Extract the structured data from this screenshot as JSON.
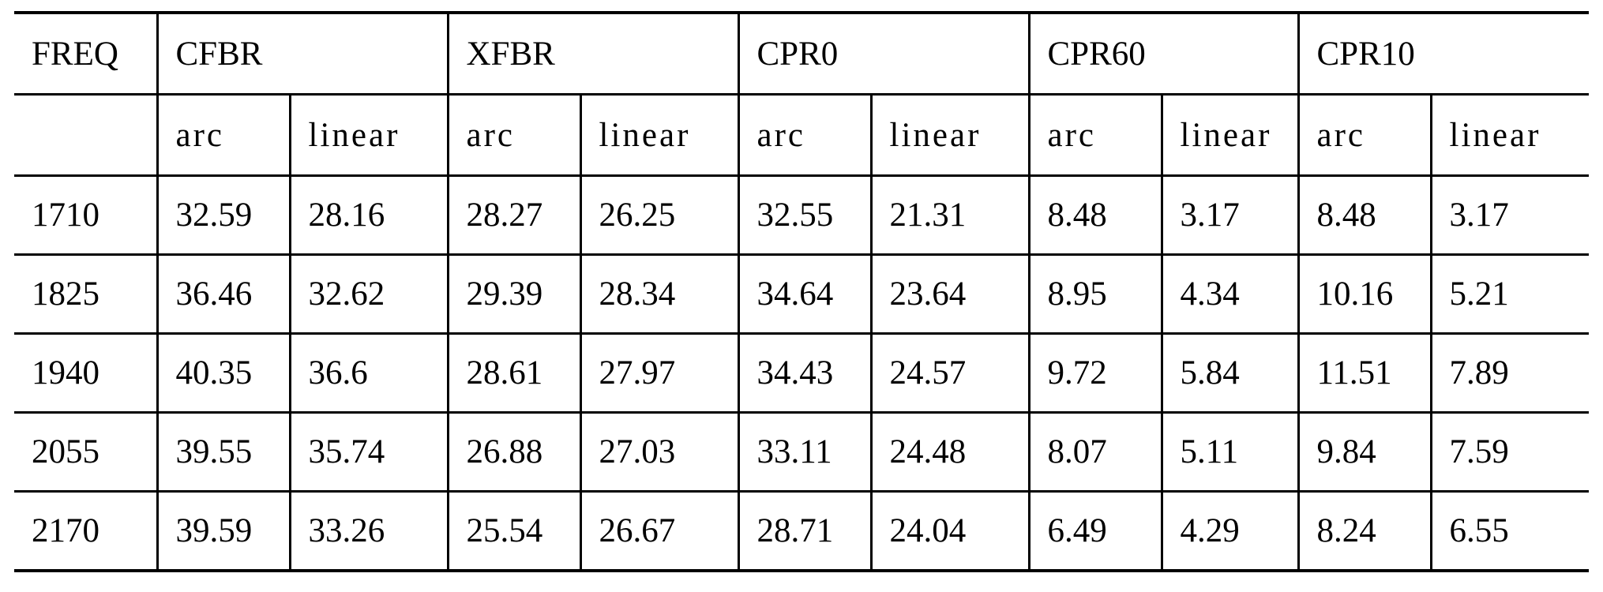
{
  "table": {
    "corner_label": "FREQ",
    "groups": [
      "CFBR",
      "XFBR",
      "CPR0",
      "CPR60",
      "CPR10"
    ],
    "subheaders": [
      "arc",
      "linear",
      "arc",
      "linear",
      "arc",
      "linear",
      "arc",
      "linear",
      "arc",
      "linear"
    ],
    "rows": [
      {
        "freq": "1710",
        "values": [
          "32.59",
          "28.16",
          "28.27",
          "26.25",
          "32.55",
          "21.31",
          "8.48",
          "3.17",
          "8.48",
          "3.17"
        ]
      },
      {
        "freq": "1825",
        "values": [
          "36.46",
          "32.62",
          "29.39",
          "28.34",
          "34.64",
          "23.64",
          "8.95",
          "4.34",
          "10.16",
          "5.21"
        ]
      },
      {
        "freq": "1940",
        "values": [
          "40.35",
          "36.6",
          "28.61",
          "27.97",
          "34.43",
          "24.57",
          "9.72",
          "5.84",
          "11.51",
          "7.89"
        ]
      },
      {
        "freq": "2055",
        "values": [
          "39.55",
          "35.74",
          "26.88",
          "27.03",
          "33.11",
          "24.48",
          "8.07",
          "5.11",
          "9.84",
          "7.59"
        ]
      },
      {
        "freq": "2170",
        "values": [
          "39.59",
          "33.26",
          "25.54",
          "26.67",
          "28.71",
          "24.04",
          "6.49",
          "4.29",
          "8.24",
          "6.55"
        ]
      }
    ]
  }
}
